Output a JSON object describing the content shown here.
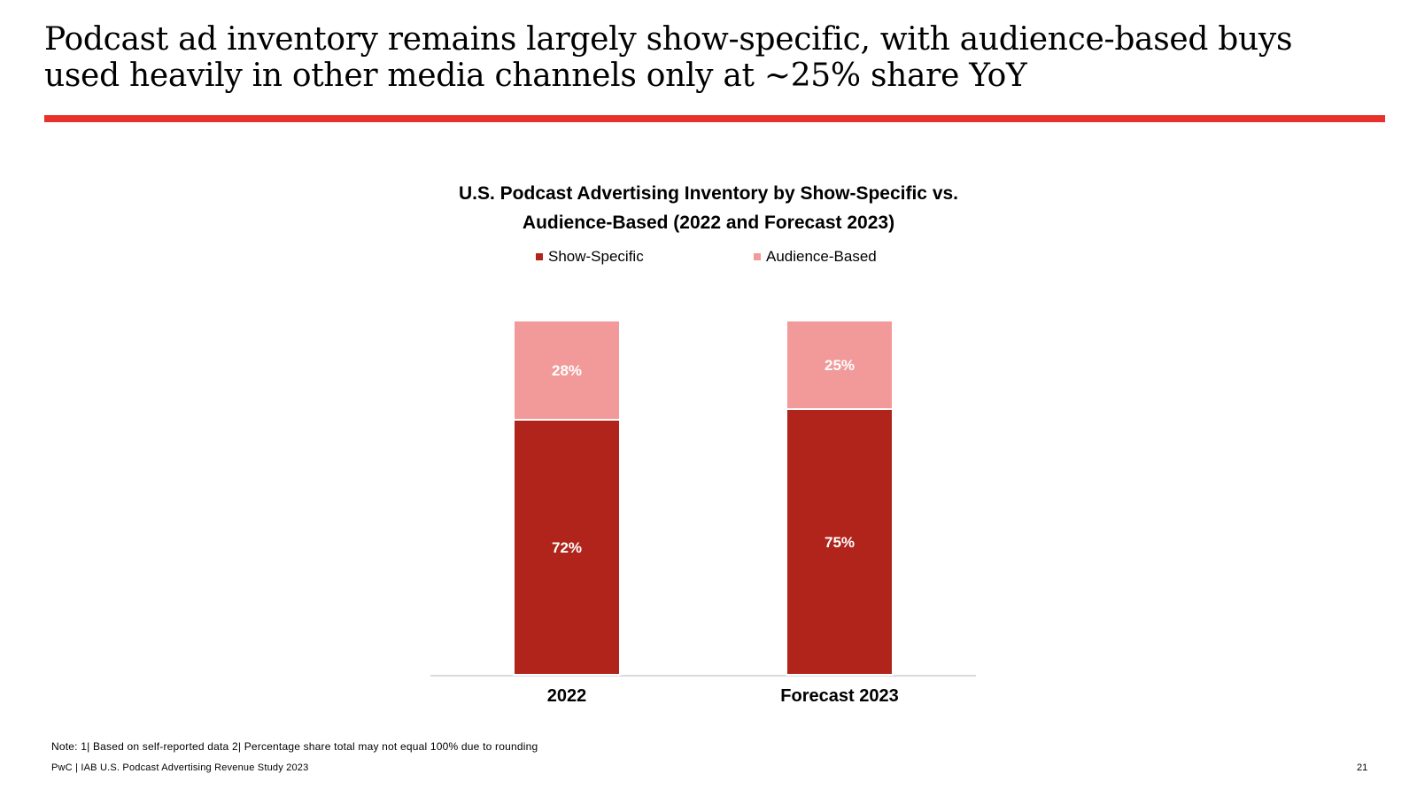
{
  "slide": {
    "title": "Podcast ad inventory remains largely show-specific, with audience-based buys used heavily in other media channels only at ~25% share YoY",
    "accent_color": "#e8312b",
    "footnote": "Note: 1| Based on self-reported data 2| Percentage share total may not equal 100% due to rounding",
    "source": "PwC | IAB U.S. Podcast Advertising Revenue Study 2023",
    "page_number": "21"
  },
  "chart_data": {
    "type": "bar",
    "stacked": true,
    "title_line1": "U.S. Podcast Advertising Inventory by Show-Specific vs.",
    "title_line2": "Audience-Based (2022 and Forecast 2023)",
    "categories": [
      "2022",
      "Forecast 2023"
    ],
    "series": [
      {
        "name": "Show-Specific",
        "values": [
          72,
          75
        ],
        "labels": [
          "72%",
          "75%"
        ],
        "color": "#b0241b"
      },
      {
        "name": "Audience-Based",
        "values": [
          28,
          25
        ],
        "labels": [
          "28%",
          "25%"
        ],
        "color": "#f29a9a"
      }
    ],
    "ylim": [
      0,
      100
    ],
    "legend_position": "top",
    "grid": false
  }
}
